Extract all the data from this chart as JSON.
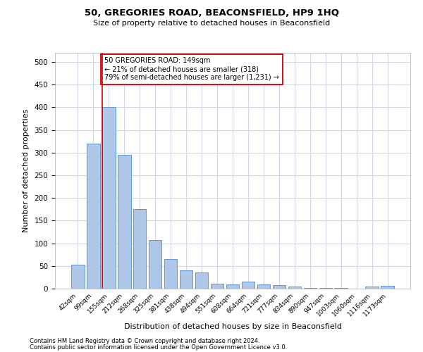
{
  "title_line1": "50, GREGORIES ROAD, BEACONSFIELD, HP9 1HQ",
  "title_line2": "Size of property relative to detached houses in Beaconsfield",
  "xlabel": "Distribution of detached houses by size in Beaconsfield",
  "ylabel": "Number of detached properties",
  "categories": [
    "42sqm",
    "99sqm",
    "155sqm",
    "212sqm",
    "268sqm",
    "325sqm",
    "381sqm",
    "438sqm",
    "494sqm",
    "551sqm",
    "608sqm",
    "664sqm",
    "721sqm",
    "777sqm",
    "834sqm",
    "890sqm",
    "947sqm",
    "1003sqm",
    "1060sqm",
    "1116sqm",
    "1173sqm"
  ],
  "values": [
    53,
    320,
    400,
    295,
    175,
    107,
    65,
    40,
    36,
    11,
    10,
    15,
    9,
    7,
    5,
    2,
    1,
    1,
    0,
    5,
    6
  ],
  "bar_color": "#aec6e8",
  "bar_edge_color": "#5b9bd5",
  "vline_x_index": 2,
  "vline_color": "#cc0000",
  "annotation_text": "50 GREGORIES ROAD: 149sqm\n← 21% of detached houses are smaller (318)\n79% of semi-detached houses are larger (1,231) →",
  "annotation_box_color": "#ffffff",
  "annotation_box_edge_color": "#cc0000",
  "ylim": [
    0,
    520
  ],
  "yticks": [
    0,
    50,
    100,
    150,
    200,
    250,
    300,
    350,
    400,
    450,
    500
  ],
  "footer_line1": "Contains HM Land Registry data © Crown copyright and database right 2024.",
  "footer_line2": "Contains public sector information licensed under the Open Government Licence v3.0.",
  "background_color": "#ffffff",
  "grid_color": "#d0d8e8"
}
